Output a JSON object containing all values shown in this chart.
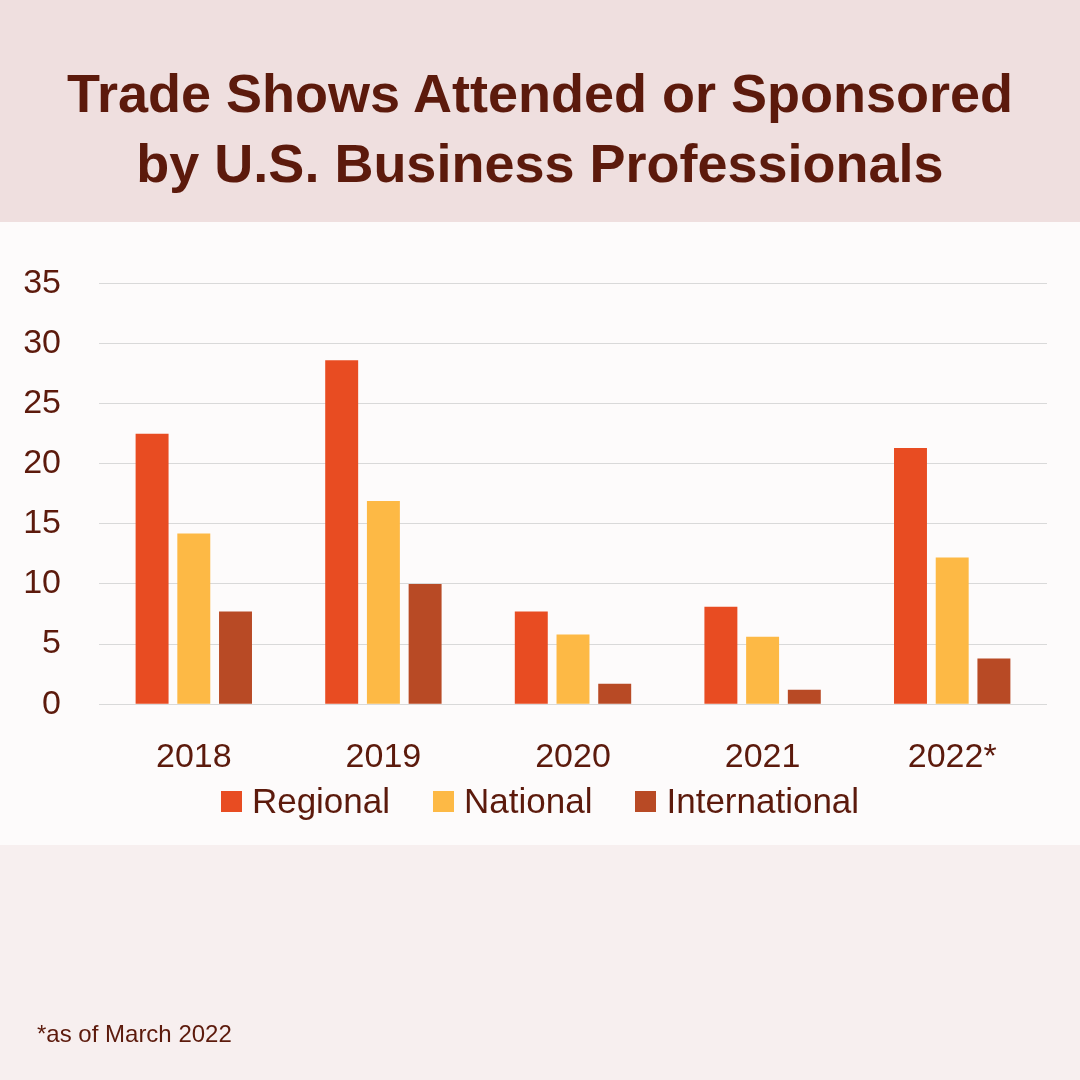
{
  "chart_data": {
    "type": "bar",
    "title": "Trade Shows Attended or Sponsored by U.S. Business Professionals",
    "categories": [
      "2018",
      "2019",
      "2020",
      "2021",
      "2022*"
    ],
    "series": [
      {
        "name": "Regional",
        "color": "#e84c22",
        "values": [
          22.5,
          28.6,
          7.7,
          8.1,
          21.3
        ]
      },
      {
        "name": "National",
        "color": "#fdb945",
        "values": [
          14.2,
          16.9,
          5.8,
          5.6,
          12.2
        ]
      },
      {
        "name": "International",
        "color": "#b84a25",
        "values": [
          7.7,
          10,
          1.7,
          1.2,
          3.8
        ]
      }
    ],
    "ylim": [
      0,
      35
    ],
    "yticks": [
      0,
      5,
      10,
      15,
      20,
      25,
      30,
      35
    ],
    "grid": "y",
    "legend": "bottom",
    "annotations": [
      "*as of March 2022"
    ]
  }
}
